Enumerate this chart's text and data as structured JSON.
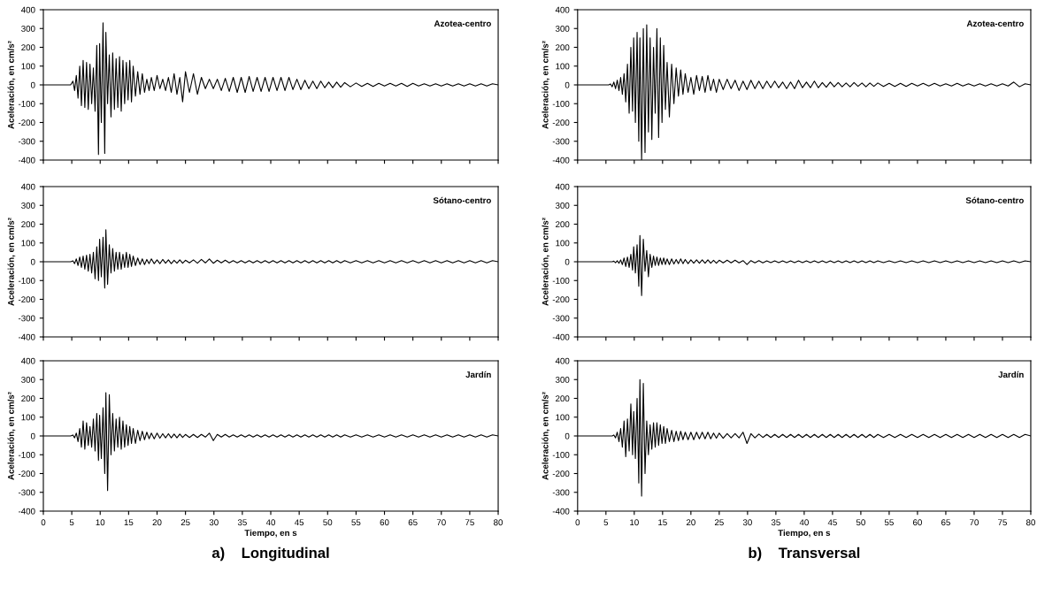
{
  "chart_data": [
    {
      "type": "line",
      "title": "Azotea-centro",
      "ylabel": "Aceleración, en cm/s²",
      "xlim": [
        0,
        80
      ],
      "xticks": [
        0,
        5,
        10,
        15,
        20,
        25,
        30,
        35,
        40,
        45,
        50,
        55,
        60,
        65,
        70,
        75,
        80
      ],
      "ylim": [
        -400,
        400
      ],
      "yticks": [
        -400,
        -300,
        -200,
        -100,
        0,
        100,
        200,
        300,
        400
      ],
      "tick_labels": "y",
      "x": [
        0,
        4.8,
        5.2,
        5.5,
        5.8,
        6.1,
        6.4,
        6.7,
        7.0,
        7.3,
        7.6,
        7.9,
        8.2,
        8.5,
        8.8,
        9.1,
        9.4,
        9.7,
        9.9,
        10.2,
        10.5,
        10.8,
        11.0,
        11.3,
        11.6,
        11.9,
        12.2,
        12.5,
        12.8,
        13.1,
        13.4,
        13.7,
        14.0,
        14.3,
        14.6,
        14.9,
        15.2,
        15.5,
        15.8,
        16.2,
        16.6,
        17.0,
        17.4,
        17.8,
        18.2,
        18.6,
        19.0,
        19.5,
        20,
        20.5,
        21,
        21.5,
        22,
        22.5,
        23,
        23.5,
        24,
        24.5,
        25,
        25.7,
        26.4,
        27.1,
        27.8,
        28.5,
        29.2,
        29.9,
        30.6,
        31.3,
        32,
        32.7,
        33.4,
        34.1,
        34.8,
        35.5,
        36.2,
        36.9,
        37.6,
        38.3,
        39,
        39.7,
        40.4,
        41.1,
        41.8,
        42.5,
        43.2,
        43.9,
        44.6,
        45.3,
        46,
        46.7,
        47.4,
        48.1,
        48.8,
        49.5,
        50.2,
        50.9,
        51.6,
        52.3,
        53,
        54,
        55,
        56,
        57,
        58,
        59,
        60,
        61,
        62,
        63,
        64,
        65,
        66,
        67,
        68,
        69,
        70,
        71,
        72,
        73,
        74,
        75,
        76,
        77,
        78,
        79,
        80
      ],
      "series": [
        {
          "color": "#000000",
          "values": [
            0,
            0,
            20,
            -30,
            50,
            -70,
            100,
            -110,
            130,
            -120,
            120,
            -130,
            110,
            -100,
            90,
            -140,
            210,
            -370,
            220,
            -200,
            330,
            -365,
            280,
            -100,
            160,
            -170,
            170,
            -130,
            140,
            -120,
            150,
            -140,
            130,
            -100,
            120,
            -80,
            130,
            -90,
            100,
            -60,
            70,
            -50,
            60,
            -40,
            30,
            -30,
            40,
            -30,
            50,
            -20,
            30,
            -30,
            40,
            -40,
            60,
            -50,
            40,
            -90,
            70,
            -40,
            60,
            -50,
            40,
            -20,
            30,
            -20,
            30,
            -30,
            35,
            -35,
            40,
            -40,
            40,
            -40,
            45,
            -35,
            40,
            -35,
            40,
            -35,
            40,
            -30,
            40,
            -30,
            40,
            -25,
            30,
            -25,
            25,
            -20,
            20,
            -20,
            20,
            -15,
            15,
            -15,
            15,
            -12,
            12,
            -10,
            10,
            -8,
            8,
            -8,
            8,
            -6,
            8,
            -6,
            8,
            -8,
            8,
            -6,
            6,
            -6,
            6,
            -6,
            6,
            -6,
            6,
            -6,
            6,
            -6,
            6,
            -6,
            6,
            0
          ]
        }
      ]
    },
    {
      "type": "line",
      "title": "Azotea-centro",
      "ylabel": "Aceleración, en cm/s²",
      "xlim": [
        0,
        80
      ],
      "xticks": [
        0,
        5,
        10,
        15,
        20,
        25,
        30,
        35,
        40,
        45,
        50,
        55,
        60,
        65,
        70,
        75,
        80
      ],
      "ylim": [
        -400,
        400
      ],
      "yticks": [
        -400,
        -300,
        -200,
        -100,
        0,
        100,
        200,
        300,
        400
      ],
      "tick_labels": "y",
      "x": [
        0,
        4.8,
        5.2,
        5.5,
        5.8,
        6.1,
        6.4,
        6.7,
        7.0,
        7.3,
        7.6,
        7.9,
        8.2,
        8.5,
        8.8,
        9.1,
        9.4,
        9.7,
        9.9,
        10.2,
        10.5,
        10.8,
        11.0,
        11.3,
        11.6,
        11.9,
        12.2,
        12.5,
        12.8,
        13.1,
        13.4,
        13.7,
        14.0,
        14.3,
        14.6,
        14.9,
        15.2,
        15.5,
        15.8,
        16.2,
        16.6,
        17.0,
        17.4,
        17.8,
        18.2,
        18.6,
        19.0,
        19.5,
        20,
        20.5,
        21,
        21.5,
        22,
        22.5,
        23,
        23.5,
        24,
        24.5,
        25,
        25.7,
        26.4,
        27.1,
        27.8,
        28.5,
        29.2,
        29.9,
        30.6,
        31.3,
        32,
        32.7,
        33.4,
        34.1,
        34.8,
        35.5,
        36.2,
        36.9,
        37.6,
        38.3,
        39,
        39.7,
        40.4,
        41.1,
        41.8,
        42.5,
        43.2,
        43.9,
        44.6,
        45.3,
        46,
        46.7,
        47.4,
        48.1,
        48.8,
        49.5,
        50.2,
        50.9,
        51.6,
        52.3,
        53,
        54,
        55,
        56,
        57,
        58,
        59,
        60,
        61,
        62,
        63,
        64,
        65,
        66,
        67,
        68,
        69,
        70,
        71,
        72,
        73,
        74,
        75,
        76,
        77,
        78,
        79,
        80
      ],
      "series": [
        {
          "color": "#000000",
          "values": [
            0,
            0,
            0,
            0,
            5,
            -10,
            15,
            -20,
            25,
            -30,
            40,
            -50,
            60,
            -90,
            110,
            -150,
            200,
            -140,
            250,
            -200,
            280,
            -300,
            250,
            -400,
            300,
            -360,
            320,
            -250,
            250,
            -290,
            200,
            -150,
            300,
            -280,
            250,
            -200,
            210,
            -130,
            120,
            -170,
            110,
            -100,
            90,
            -60,
            80,
            -50,
            60,
            -40,
            40,
            -50,
            50,
            -30,
            45,
            -40,
            50,
            -30,
            30,
            -40,
            30,
            -25,
            30,
            -20,
            25,
            -30,
            20,
            -25,
            25,
            -20,
            20,
            -20,
            20,
            -15,
            20,
            -15,
            15,
            -20,
            15,
            -20,
            25,
            -15,
            15,
            -15,
            20,
            -15,
            12,
            -12,
            15,
            -10,
            12,
            -10,
            10,
            -10,
            12,
            -8,
            10,
            -10,
            10,
            -8,
            10,
            -8,
            8,
            -8,
            8,
            -8,
            8,
            -6,
            8,
            -6,
            8,
            -6,
            6,
            -6,
            8,
            -6,
            6,
            -6,
            6,
            -6,
            6,
            -6,
            6,
            -6,
            15,
            -10,
            6,
            0
          ]
        }
      ]
    },
    {
      "type": "line",
      "title": "Sótano-centro",
      "ylabel": "Aceleración, en cm/s²",
      "xlim": [
        0,
        80
      ],
      "xticks": [
        0,
        5,
        10,
        15,
        20,
        25,
        30,
        35,
        40,
        45,
        50,
        55,
        60,
        65,
        70,
        75,
        80
      ],
      "ylim": [
        -400,
        400
      ],
      "yticks": [
        -400,
        -300,
        -200,
        -100,
        0,
        100,
        200,
        300,
        400
      ],
      "tick_labels": "y",
      "x": [
        0,
        4.8,
        5.2,
        5.5,
        5.8,
        6.1,
        6.4,
        6.7,
        7.0,
        7.3,
        7.6,
        7.9,
        8.2,
        8.5,
        8.8,
        9.1,
        9.4,
        9.7,
        9.9,
        10.2,
        10.5,
        10.8,
        11.0,
        11.3,
        11.6,
        11.9,
        12.2,
        12.5,
        12.8,
        13.1,
        13.4,
        13.7,
        14.0,
        14.3,
        14.6,
        14.9,
        15.2,
        15.5,
        15.8,
        16.2,
        16.6,
        17.0,
        17.4,
        17.8,
        18.2,
        18.6,
        19.0,
        19.5,
        20,
        20.5,
        21,
        21.5,
        22,
        22.5,
        23,
        23.5,
        24,
        24.5,
        25,
        25.7,
        26.4,
        27.1,
        27.8,
        28.5,
        29.2,
        29.9,
        30.6,
        31.3,
        32,
        32.7,
        33.4,
        34.1,
        34.8,
        35.5,
        36.2,
        36.9,
        37.6,
        38.3,
        39,
        39.7,
        40.4,
        41.1,
        41.8,
        42.5,
        43.2,
        43.9,
        44.6,
        45.3,
        46,
        46.7,
        47.4,
        48.1,
        48.8,
        49.5,
        50.2,
        50.9,
        51.6,
        52.3,
        53,
        54,
        55,
        56,
        57,
        58,
        59,
        60,
        61,
        62,
        63,
        64,
        65,
        66,
        67,
        68,
        69,
        70,
        71,
        72,
        73,
        74,
        75,
        76,
        77,
        78,
        79,
        80
      ],
      "series": [
        {
          "color": "#000000",
          "values": [
            0,
            0,
            5,
            -10,
            15,
            -20,
            25,
            -30,
            30,
            -40,
            35,
            -50,
            40,
            -60,
            50,
            -90,
            80,
            -100,
            120,
            -80,
            130,
            -140,
            170,
            -120,
            90,
            -60,
            70,
            -50,
            50,
            -40,
            50,
            -40,
            40,
            -30,
            50,
            -30,
            40,
            -25,
            30,
            -20,
            20,
            -15,
            15,
            -15,
            12,
            -10,
            15,
            -10,
            10,
            -10,
            12,
            -8,
            10,
            -10,
            8,
            -8,
            10,
            -8,
            8,
            -6,
            10,
            -8,
            12,
            -6,
            15,
            -8,
            8,
            -6,
            8,
            -6,
            6,
            -6,
            6,
            -6,
            6,
            -6,
            6,
            -6,
            6,
            -6,
            6,
            -6,
            6,
            -6,
            6,
            -6,
            6,
            -6,
            6,
            -6,
            6,
            -6,
            6,
            -6,
            6,
            -6,
            6,
            -6,
            6,
            -6,
            6,
            -6,
            6,
            -6,
            6,
            -6,
            6,
            -6,
            6,
            -6,
            6,
            -6,
            6,
            -6,
            6,
            -6,
            6,
            -6,
            6,
            -6,
            6,
            -6,
            6,
            -6,
            6,
            0
          ]
        }
      ]
    },
    {
      "type": "line",
      "title": "Sótano-centro",
      "ylabel": "Aceleración, en cm/s²",
      "xlim": [
        0,
        80
      ],
      "xticks": [
        0,
        5,
        10,
        15,
        20,
        25,
        30,
        35,
        40,
        45,
        50,
        55,
        60,
        65,
        70,
        75,
        80
      ],
      "ylim": [
        -400,
        400
      ],
      "yticks": [
        -400,
        -300,
        -200,
        -100,
        0,
        100,
        200,
        300,
        400
      ],
      "tick_labels": "y",
      "x": [
        0,
        4.8,
        5.2,
        5.5,
        5.8,
        6.1,
        6.4,
        6.7,
        7.0,
        7.3,
        7.6,
        7.9,
        8.2,
        8.5,
        8.8,
        9.1,
        9.4,
        9.7,
        9.9,
        10.2,
        10.5,
        10.8,
        11.0,
        11.3,
        11.6,
        11.9,
        12.2,
        12.5,
        12.8,
        13.1,
        13.4,
        13.7,
        14.0,
        14.3,
        14.6,
        14.9,
        15.2,
        15.5,
        15.8,
        16.2,
        16.6,
        17.0,
        17.4,
        17.8,
        18.2,
        18.6,
        19.0,
        19.5,
        20,
        20.5,
        21,
        21.5,
        22,
        22.5,
        23,
        23.5,
        24,
        24.5,
        25,
        25.7,
        26.4,
        27.1,
        27.8,
        28.5,
        29.2,
        29.9,
        30.6,
        31.3,
        32,
        32.7,
        33.4,
        34.1,
        34.8,
        35.5,
        36.2,
        36.9,
        37.6,
        38.3,
        39,
        39.7,
        40.4,
        41.1,
        41.8,
        42.5,
        43.2,
        43.9,
        44.6,
        45.3,
        46,
        46.7,
        47.4,
        48.1,
        48.8,
        49.5,
        50.2,
        50.9,
        51.6,
        52.3,
        53,
        54,
        55,
        56,
        57,
        58,
        59,
        60,
        61,
        62,
        63,
        64,
        65,
        66,
        67,
        68,
        69,
        70,
        71,
        72,
        73,
        74,
        75,
        76,
        77,
        78,
        79,
        80
      ],
      "series": [
        {
          "color": "#000000",
          "values": [
            0,
            0,
            0,
            0,
            0,
            0,
            3,
            -5,
            5,
            -8,
            10,
            -15,
            20,
            -25,
            25,
            -30,
            40,
            -45,
            80,
            -60,
            90,
            -130,
            140,
            -180,
            120,
            -50,
            60,
            -80,
            40,
            -30,
            30,
            -20,
            25,
            -20,
            20,
            -15,
            20,
            -15,
            15,
            -15,
            15,
            -12,
            12,
            -10,
            15,
            -10,
            12,
            -10,
            10,
            -8,
            10,
            -8,
            10,
            -8,
            10,
            -8,
            8,
            -8,
            8,
            -6,
            8,
            -6,
            8,
            -6,
            6,
            -15,
            6,
            -6,
            6,
            -6,
            5,
            -5,
            5,
            -5,
            5,
            -5,
            5,
            -5,
            5,
            -5,
            5,
            -5,
            5,
            -5,
            5,
            -5,
            5,
            -5,
            5,
            -5,
            5,
            -5,
            5,
            -5,
            5,
            -5,
            5,
            -5,
            5,
            -5,
            5,
            -5,
            5,
            -5,
            5,
            -5,
            5,
            -5,
            5,
            -5,
            5,
            -5,
            5,
            -5,
            5,
            -5,
            5,
            -5,
            5,
            -5,
            5,
            -5,
            5,
            -5,
            5,
            0
          ]
        }
      ]
    },
    {
      "type": "line",
      "title": "Jardín",
      "ylabel": "Aceleración, en cm/s²",
      "xlabel": "Tiempo, en s",
      "annotations": [
        "a)    Longitudinal"
      ],
      "xlim": [
        0,
        80
      ],
      "xticks": [
        0,
        5,
        10,
        15,
        20,
        25,
        30,
        35,
        40,
        45,
        50,
        55,
        60,
        65,
        70,
        75,
        80
      ],
      "ylim": [
        -400,
        400
      ],
      "yticks": [
        -400,
        -300,
        -200,
        -100,
        0,
        100,
        200,
        300,
        400
      ],
      "x": [
        0,
        4.8,
        5.2,
        5.5,
        5.8,
        6.1,
        6.4,
        6.7,
        7.0,
        7.3,
        7.6,
        7.9,
        8.2,
        8.5,
        8.8,
        9.1,
        9.4,
        9.7,
        9.9,
        10.2,
        10.5,
        10.8,
        11.0,
        11.3,
        11.6,
        11.9,
        12.2,
        12.5,
        12.8,
        13.1,
        13.4,
        13.7,
        14.0,
        14.3,
        14.6,
        14.9,
        15.2,
        15.5,
        15.8,
        16.2,
        16.6,
        17.0,
        17.4,
        17.8,
        18.2,
        18.6,
        19.0,
        19.5,
        20,
        20.5,
        21,
        21.5,
        22,
        22.5,
        23,
        23.5,
        24,
        24.5,
        25,
        25.7,
        26.4,
        27.1,
        27.8,
        28.5,
        29.2,
        29.9,
        30.6,
        31.3,
        32,
        32.7,
        33.4,
        34.1,
        34.8,
        35.5,
        36.2,
        36.9,
        37.6,
        38.3,
        39,
        39.7,
        40.4,
        41.1,
        41.8,
        42.5,
        43.2,
        43.9,
        44.6,
        45.3,
        46,
        46.7,
        47.4,
        48.1,
        48.8,
        49.5,
        50.2,
        50.9,
        51.6,
        52.3,
        53,
        54,
        55,
        56,
        57,
        58,
        59,
        60,
        61,
        62,
        63,
        64,
        65,
        66,
        67,
        68,
        69,
        70,
        71,
        72,
        73,
        74,
        75,
        76,
        77,
        78,
        79,
        80
      ],
      "series": [
        {
          "color": "#000000",
          "values": [
            0,
            0,
            5,
            -10,
            15,
            -30,
            40,
            -60,
            80,
            -70,
            70,
            -50,
            50,
            -60,
            90,
            -80,
            120,
            -130,
            110,
            -120,
            150,
            -200,
            230,
            -290,
            220,
            -100,
            120,
            -80,
            90,
            -60,
            100,
            -70,
            80,
            -60,
            60,
            -50,
            50,
            -40,
            40,
            -40,
            30,
            -25,
            25,
            -20,
            20,
            -15,
            15,
            -15,
            15,
            -12,
            12,
            -10,
            12,
            -10,
            10,
            -10,
            10,
            -8,
            8,
            -8,
            8,
            -8,
            8,
            -6,
            15,
            -25,
            8,
            -6,
            8,
            -6,
            6,
            -6,
            6,
            -6,
            6,
            -6,
            6,
            -6,
            6,
            -6,
            6,
            -6,
            6,
            -6,
            6,
            -6,
            6,
            -6,
            6,
            -6,
            6,
            -6,
            6,
            -6,
            6,
            -6,
            6,
            -6,
            6,
            -6,
            6,
            -6,
            6,
            -6,
            6,
            -6,
            6,
            -6,
            6,
            -6,
            6,
            -6,
            6,
            -6,
            6,
            -6,
            6,
            -6,
            6,
            -6,
            6,
            -6,
            6,
            -6,
            6,
            0
          ]
        }
      ]
    },
    {
      "type": "line",
      "title": "Jardín",
      "ylabel": "Aceleración, en cm/s²",
      "xlabel": "Tiempo, en s",
      "annotations": [
        "b)    Transversal"
      ],
      "xlim": [
        0,
        80
      ],
      "xticks": [
        0,
        5,
        10,
        15,
        20,
        25,
        30,
        35,
        40,
        45,
        50,
        55,
        60,
        65,
        70,
        75,
        80
      ],
      "ylim": [
        -400,
        400
      ],
      "yticks": [
        -400,
        -300,
        -200,
        -100,
        0,
        100,
        200,
        300,
        400
      ],
      "x": [
        0,
        4.8,
        5.2,
        5.5,
        5.8,
        6.1,
        6.4,
        6.7,
        7.0,
        7.3,
        7.6,
        7.9,
        8.2,
        8.5,
        8.8,
        9.1,
        9.4,
        9.7,
        9.9,
        10.2,
        10.5,
        10.8,
        11.0,
        11.3,
        11.6,
        11.9,
        12.2,
        12.5,
        12.8,
        13.1,
        13.4,
        13.7,
        14.0,
        14.3,
        14.6,
        14.9,
        15.2,
        15.5,
        15.8,
        16.2,
        16.6,
        17.0,
        17.4,
        17.8,
        18.2,
        18.6,
        19.0,
        19.5,
        20,
        20.5,
        21,
        21.5,
        22,
        22.5,
        23,
        23.5,
        24,
        24.5,
        25,
        25.7,
        26.4,
        27.1,
        27.8,
        28.5,
        29.2,
        29.9,
        30.6,
        31.3,
        32,
        32.7,
        33.4,
        34.1,
        34.8,
        35.5,
        36.2,
        36.9,
        37.6,
        38.3,
        39,
        39.7,
        40.4,
        41.1,
        41.8,
        42.5,
        43.2,
        43.9,
        44.6,
        45.3,
        46,
        46.7,
        47.4,
        48.1,
        48.8,
        49.5,
        50.2,
        50.9,
        51.6,
        52.3,
        53,
        54,
        55,
        56,
        57,
        58,
        59,
        60,
        61,
        62,
        63,
        64,
        65,
        66,
        67,
        68,
        69,
        70,
        71,
        72,
        73,
        74,
        75,
        76,
        77,
        78,
        79,
        80
      ],
      "series": [
        {
          "color": "#000000",
          "values": [
            0,
            0,
            0,
            0,
            0,
            0,
            5,
            -10,
            20,
            -30,
            40,
            -60,
            80,
            -110,
            90,
            -80,
            170,
            -100,
            130,
            -120,
            200,
            -250,
            300,
            -320,
            280,
            -200,
            80,
            -100,
            60,
            -70,
            70,
            -60,
            70,
            -50,
            60,
            -40,
            50,
            -40,
            40,
            -30,
            30,
            -30,
            25,
            -25,
            25,
            -20,
            20,
            -20,
            20,
            -20,
            20,
            -15,
            20,
            -15,
            20,
            -15,
            15,
            -12,
            15,
            -12,
            12,
            -10,
            12,
            -10,
            20,
            -40,
            12,
            -10,
            10,
            -8,
            8,
            -8,
            8,
            -8,
            8,
            -8,
            8,
            -8,
            8,
            -8,
            8,
            -8,
            8,
            -8,
            8,
            -8,
            8,
            -8,
            8,
            -8,
            8,
            -8,
            8,
            -8,
            8,
            -8,
            8,
            -8,
            8,
            -8,
            8,
            -8,
            8,
            -8,
            8,
            -8,
            8,
            -8,
            8,
            -8,
            8,
            -8,
            8,
            -8,
            8,
            -8,
            8,
            -8,
            8,
            -8,
            8,
            -8,
            8,
            -8,
            8,
            0
          ]
        }
      ]
    }
  ]
}
